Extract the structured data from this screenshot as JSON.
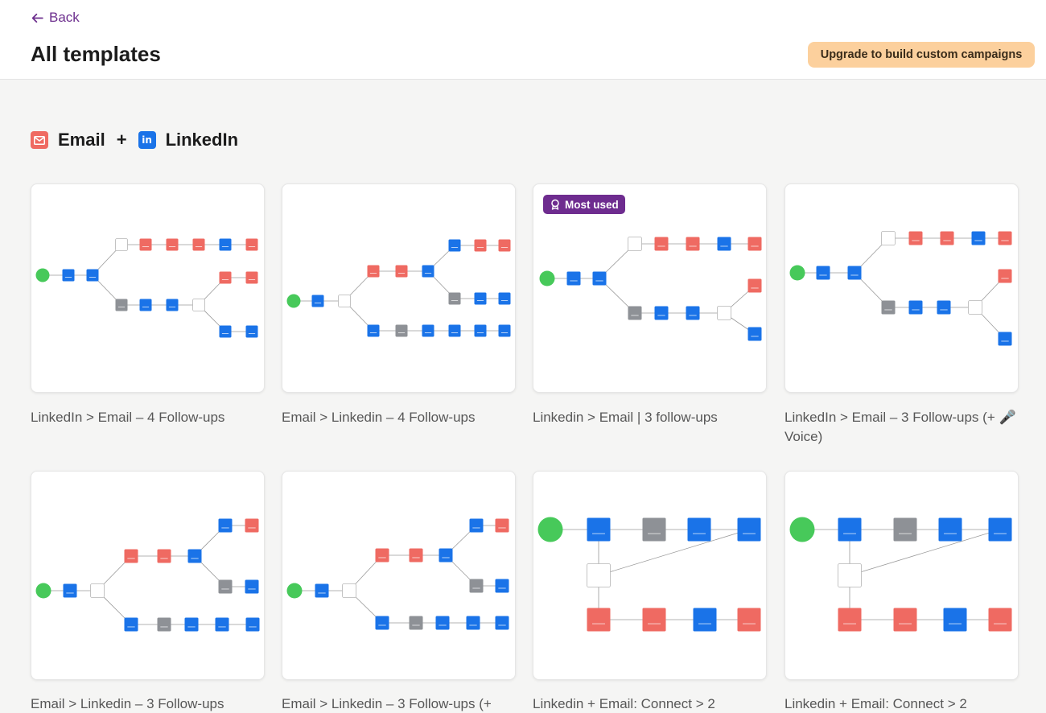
{
  "header": {
    "back_label": "Back",
    "title": "All templates",
    "upgrade_label": "Upgrade to build custom campaigns"
  },
  "section": {
    "title_a": "Email",
    "plus": "+",
    "title_b": "LinkedIn"
  },
  "templates": [
    {
      "name": "LinkedIn > Email – 4 Follow-ups"
    },
    {
      "name": "Email > Linkedin – 4 Follow-ups"
    },
    {
      "name": "Linkedin > Email | 3 follow-ups",
      "badge": "Most used"
    },
    {
      "name": "LinkedIn > Email – 3 Follow-ups (+ 🎤 Voice)"
    },
    {
      "name": "Email > Linkedin – 3 Follow-ups"
    },
    {
      "name": "Email > Linkedin – 3 Follow-ups (+"
    },
    {
      "name": "Linkedin + Email: Connect > 2"
    },
    {
      "name": "Linkedin + Email: Connect > 2"
    }
  ],
  "colors": {
    "accent": "#6d2f8e",
    "upgrade_bg": "#fcd09d",
    "linkedin_blue": "#1a73e8",
    "email_red": "#ef6a62",
    "wait_gray": "#8e9196",
    "start_green": "#47c95a"
  }
}
